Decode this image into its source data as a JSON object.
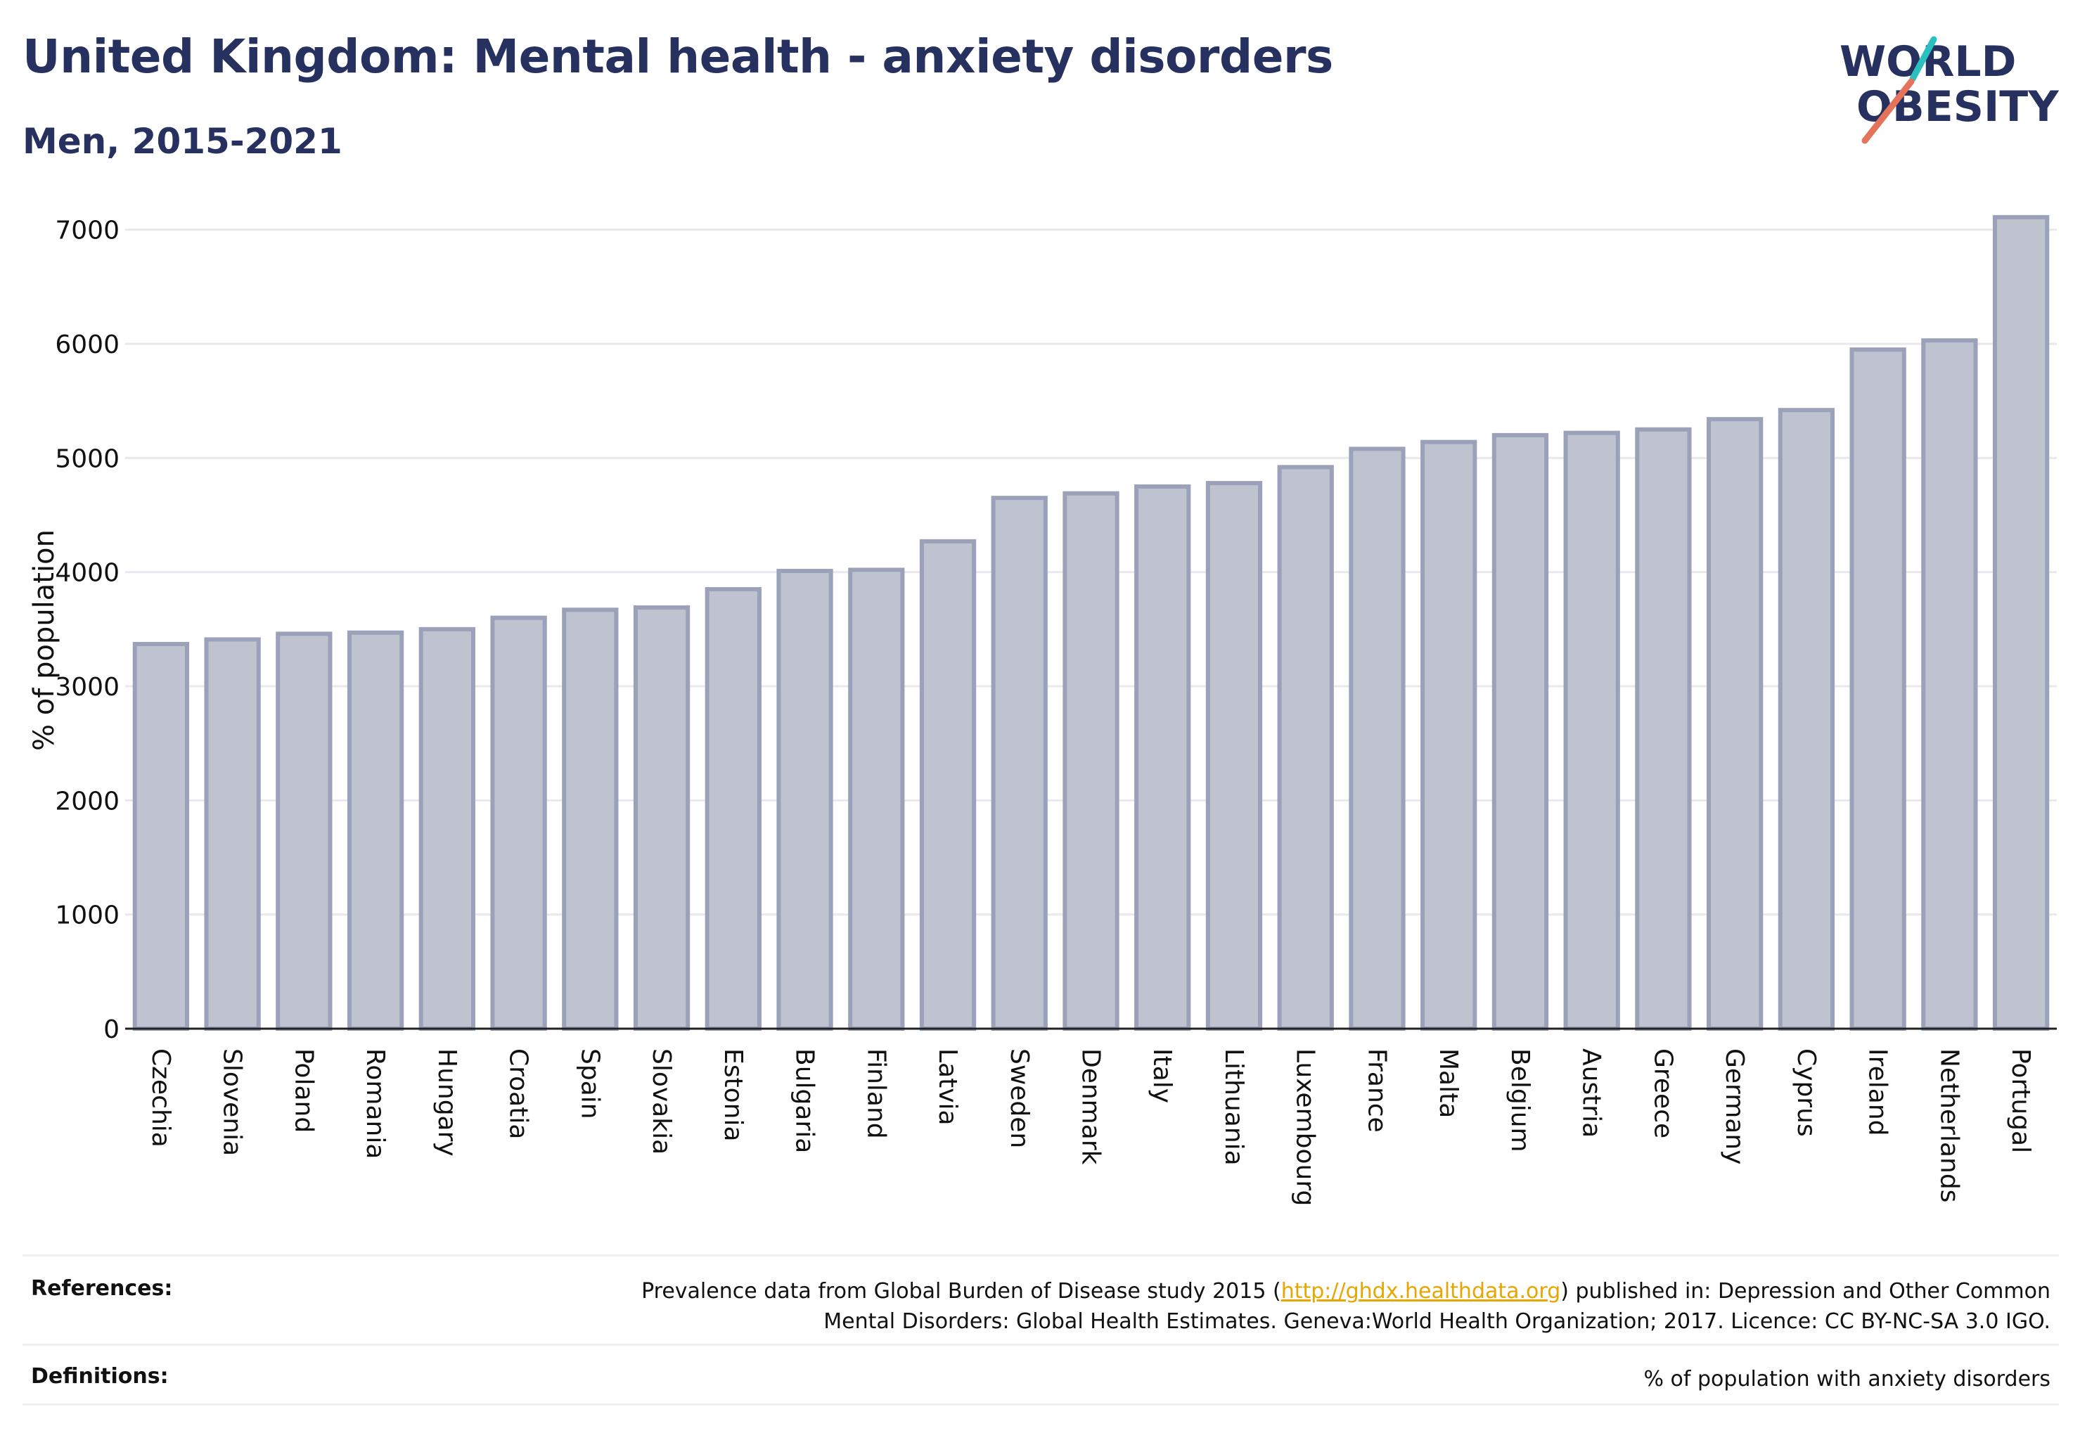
{
  "title": "United Kingdom: Mental health - anxiety disorders",
  "subtitle": "Men, 2015-2021",
  "logo": {
    "line1": "WORLD",
    "line2": "OBESITY"
  },
  "colors": {
    "title": "#263160",
    "bar_fill": "#bfc3d0",
    "bar_stroke": "#9ba1b9",
    "grid": "#e8e9ee",
    "axis": "#222222",
    "link": "#e8a600",
    "logo_teal": "#2bbfbf",
    "logo_red": "#e5725a"
  },
  "chart_data": {
    "type": "bar",
    "ylabel": "% of population",
    "xlabel": "",
    "ylim": [
      0,
      7300
    ],
    "yticks": [
      0,
      1000,
      2000,
      3000,
      4000,
      5000,
      6000,
      7000
    ],
    "grid": true,
    "categories": [
      "Czechia",
      "Slovenia",
      "Poland",
      "Romania",
      "Hungary",
      "Croatia",
      "Spain",
      "Slovakia",
      "Estonia",
      "Bulgaria",
      "Finland",
      "Latvia",
      "Sweden",
      "Denmark",
      "Italy",
      "Lithuania",
      "Luxembourg",
      "France",
      "Malta",
      "Belgium",
      "Austria",
      "Greece",
      "Germany",
      "Cyprus",
      "Ireland",
      "Netherlands",
      "Portugal"
    ],
    "values": [
      3370,
      3410,
      3460,
      3470,
      3500,
      3600,
      3670,
      3690,
      3850,
      4010,
      4020,
      4270,
      4650,
      4690,
      4750,
      4780,
      4920,
      5080,
      5140,
      5200,
      5220,
      5250,
      5340,
      5420,
      5950,
      6030,
      7110
    ]
  },
  "footer": {
    "references_label": "References:",
    "references_text_before": "Prevalence data from Global Burden of Disease study 2015 (",
    "references_link": "http://ghdx.healthdata.org",
    "references_text_after": ") published in: Depression and Other Common",
    "references_text_line2": "Mental Disorders: Global Health Estimates. Geneva:World Health Organization; 2017. Licence: CC BY-NC-SA 3.0 IGO.",
    "definitions_label": "Definitions:",
    "definitions_text": "% of population with anxiety disorders"
  }
}
